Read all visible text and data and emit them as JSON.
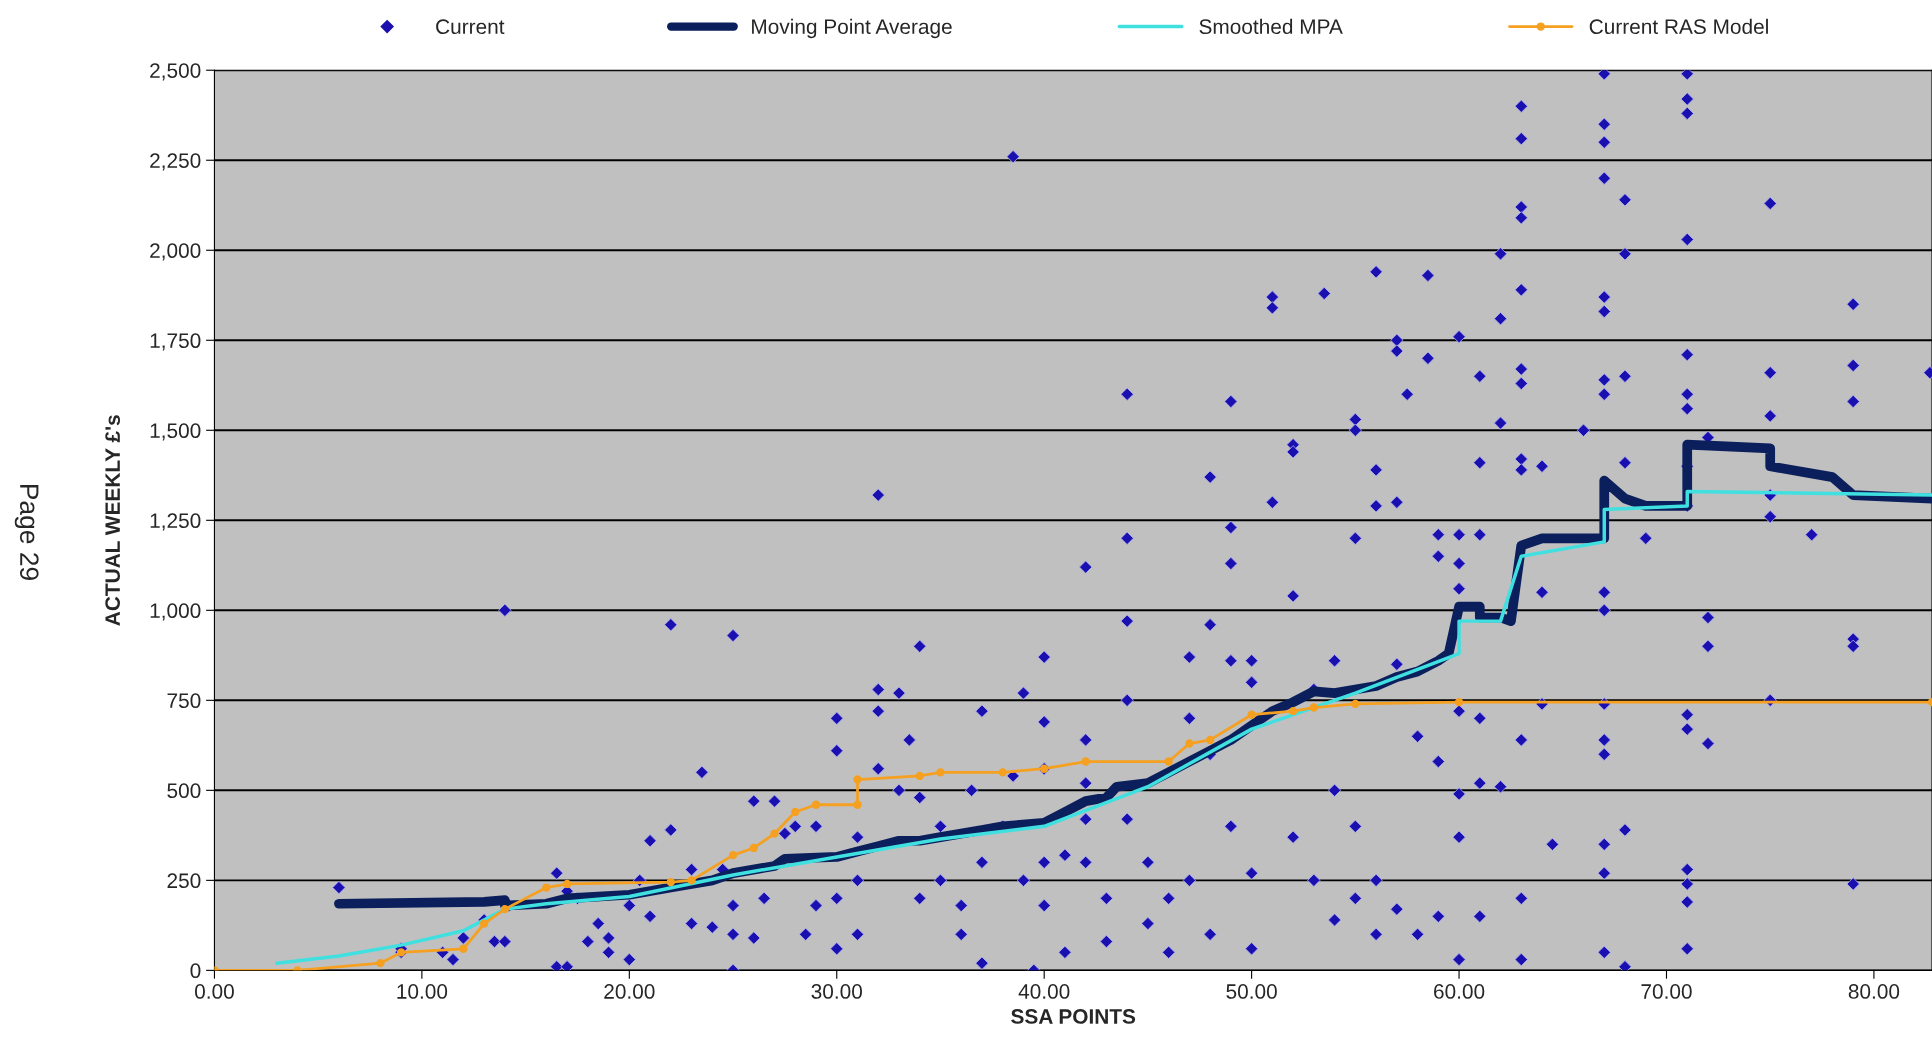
{
  "chart_data": {
    "type": "scatter",
    "xlabel": "SSA POINTS",
    "ylabel": "ACTUAL WEEKLY £'s",
    "annotations": [
      "Page 29"
    ],
    "xlim": [
      0,
      82.8
    ],
    "ylim": [
      0,
      2500
    ],
    "xticks": [
      {
        "value": 0,
        "label": "0.00"
      },
      {
        "value": 10,
        "label": "10.00"
      },
      {
        "value": 20,
        "label": "20.00"
      },
      {
        "value": 30,
        "label": "30.00"
      },
      {
        "value": 40,
        "label": "40.00"
      },
      {
        "value": 50,
        "label": "50.00"
      },
      {
        "value": 60,
        "label": "60.00"
      },
      {
        "value": 70,
        "label": "70.00"
      },
      {
        "value": 80,
        "label": "80.00"
      }
    ],
    "yticks": [
      0,
      250,
      500,
      750,
      {
        "value": 1000,
        "label": "1,000"
      },
      {
        "value": 1250,
        "label": "1,250"
      },
      {
        "value": 1500,
        "label": "1,500"
      },
      {
        "value": 1750,
        "label": "1,750"
      },
      {
        "value": 2000,
        "label": "2,000"
      },
      {
        "value": 2250,
        "label": "2,250"
      },
      {
        "value": 2500,
        "label": "2,500"
      }
    ],
    "grid": "y",
    "legend": "top",
    "series": [
      {
        "name": "Current",
        "marker": "diamond",
        "color": "#1a10b0",
        "x": [
          6,
          9,
          9,
          11,
          11.5,
          12,
          13,
          13.5,
          14,
          14,
          14.2,
          16.5,
          17,
          16.5,
          17,
          17.5,
          18,
          18.5,
          19,
          19,
          20,
          20,
          20.5,
          21,
          21,
          22,
          22,
          23,
          23,
          23.5,
          24,
          24.5,
          25,
          25,
          25,
          25,
          26,
          26,
          26.5,
          27,
          27.5,
          28,
          28.5,
          29,
          29,
          30,
          30,
          30,
          30,
          31,
          31,
          31,
          32,
          32,
          32,
          32,
          33,
          33,
          33.5,
          34,
          34,
          34,
          35,
          35,
          36,
          36,
          36.5,
          37,
          37,
          37,
          38,
          38.5,
          38.5,
          39,
          39,
          39.5,
          40,
          40,
          40,
          40,
          40,
          41,
          41,
          42,
          42,
          42,
          42,
          42,
          43,
          43,
          44,
          44,
          44,
          44,
          44,
          45,
          45,
          46,
          46,
          47,
          47,
          47,
          48,
          48,
          48,
          48,
          49,
          49,
          49,
          49,
          49,
          50,
          50,
          50,
          50,
          51,
          51,
          51,
          52,
          52,
          52,
          52,
          53,
          53,
          53.5,
          54,
          54,
          54,
          55,
          55,
          55,
          55,
          55,
          56,
          56,
          56,
          56,
          56,
          57,
          57,
          57,
          57,
          57,
          57.5,
          58,
          58,
          58.5,
          58.5,
          59,
          59,
          59,
          59,
          60,
          60,
          60,
          60,
          60,
          60,
          60,
          60,
          61,
          61,
          61,
          61,
          61,
          61,
          62,
          62,
          62,
          62,
          63,
          63,
          63,
          63,
          63,
          63,
          63,
          63,
          63,
          63,
          63,
          63,
          64,
          64,
          64,
          64.5,
          66,
          67,
          67,
          67,
          67,
          67,
          67,
          67,
          67,
          67,
          67,
          67,
          67,
          67,
          67,
          67,
          67,
          68,
          68,
          68,
          68,
          68,
          68,
          69,
          71,
          71,
          71,
          71,
          71,
          71,
          71,
          71,
          71,
          71,
          71,
          71,
          71,
          71,
          71,
          72,
          72,
          72,
          72,
          75,
          75,
          75,
          75,
          75,
          75,
          77,
          79,
          79,
          79,
          79,
          79,
          79,
          82.7
        ],
        "values": [
          230,
          50,
          60,
          50,
          30,
          90,
          140,
          80,
          80,
          1000,
          180,
          10,
          10,
          270,
          220,
          200,
          80,
          130,
          50,
          90,
          30,
          180,
          250,
          150,
          360,
          960,
          390,
          130,
          280,
          550,
          120,
          280,
          930,
          0,
          180,
          100,
          470,
          90,
          200,
          470,
          380,
          400,
          100,
          400,
          180,
          700,
          610,
          200,
          60,
          370,
          250,
          100,
          780,
          1320,
          720,
          560,
          770,
          500,
          640,
          900,
          480,
          200,
          400,
          250,
          100,
          180,
          500,
          720,
          20,
          300,
          400,
          2260,
          540,
          770,
          250,
          0,
          870,
          690,
          560,
          300,
          180,
          320,
          50,
          1120,
          640,
          520,
          420,
          300,
          200,
          80,
          1600,
          1200,
          970,
          750,
          420,
          300,
          130,
          200,
          50,
          870,
          700,
          250,
          1370,
          960,
          600,
          100,
          1580,
          1230,
          1130,
          860,
          400,
          860,
          800,
          270,
          60,
          1870,
          1840,
          1300,
          1460,
          1440,
          1040,
          370,
          780,
          250,
          1880,
          860,
          500,
          140,
          1530,
          1500,
          1200,
          400,
          200,
          1940,
          1390,
          1290,
          250,
          100,
          1750,
          1720,
          1300,
          850,
          170,
          1600,
          650,
          100,
          1930,
          1700,
          1210,
          1150,
          580,
          150,
          1760,
          1210,
          1130,
          1060,
          720,
          490,
          370,
          30,
          1650,
          1410,
          1210,
          700,
          520,
          150,
          1990,
          1810,
          1520,
          510,
          2400,
          2310,
          2120,
          2090,
          1890,
          1670,
          1630,
          1420,
          1390,
          640,
          200,
          30,
          1400,
          1050,
          740,
          350,
          1500,
          2490,
          2350,
          2300,
          2200,
          1870,
          1830,
          1640,
          1600,
          1050,
          1000,
          740,
          640,
          600,
          350,
          270,
          50,
          1650,
          1410,
          2140,
          1990,
          390,
          10,
          1200,
          2490,
          2420,
          2380,
          2030,
          1710,
          1600,
          1560,
          1400,
          1290,
          710,
          670,
          280,
          240,
          190,
          60,
          1480,
          980,
          900,
          630,
          2130,
          1660,
          1540,
          1320,
          1260,
          750,
          1210,
          1850,
          1680,
          1580,
          920,
          900,
          240,
          1660
        ]
      },
      {
        "name": "Moving Point Average",
        "type": "line",
        "marker": "none",
        "color": "#0a1f5c",
        "x": [
          6,
          13,
          14,
          14,
          16,
          17,
          20,
          22,
          24,
          25,
          27,
          27.5,
          30,
          31,
          32,
          33,
          34,
          35,
          37,
          38,
          40,
          41,
          42,
          43,
          43.5,
          45,
          46,
          47,
          48,
          49,
          50,
          51,
          52,
          53,
          54,
          55,
          56,
          57,
          58,
          59,
          59.5,
          60,
          61,
          61,
          62,
          62.5,
          63,
          64,
          65,
          67,
          67,
          68,
          69,
          71,
          71,
          75,
          75,
          78,
          79,
          82.8
        ],
        "values": [
          185,
          190,
          195,
          180,
          185,
          200,
          210,
          230,
          250,
          270,
          290,
          310,
          315,
          330,
          345,
          360,
          360,
          370,
          390,
          400,
          410,
          440,
          470,
          480,
          510,
          520,
          550,
          580,
          610,
          640,
          680,
          720,
          745,
          775,
          770,
          780,
          790,
          815,
          830,
          860,
          880,
          1010,
          1010,
          980,
          980,
          970,
          1180,
          1200,
          1200,
          1200,
          1360,
          1310,
          1290,
          1290,
          1460,
          1450,
          1400,
          1370,
          1320,
          1310
        ]
      },
      {
        "name": "Smoothed MPA",
        "type": "line",
        "marker": "none",
        "color": "#40e0e0",
        "x": [
          3,
          6,
          9,
          12,
          14,
          16,
          20,
          25,
          30,
          35,
          40,
          45,
          50,
          55,
          60,
          60,
          62,
          63,
          67,
          67,
          71,
          71,
          82.8
        ],
        "values": [
          20,
          40,
          70,
          110,
          170,
          185,
          205,
          265,
          315,
          365,
          400,
          510,
          670,
          770,
          880,
          970,
          970,
          1150,
          1190,
          1280,
          1290,
          1330,
          1320
        ]
      },
      {
        "name": "Current RAS Model",
        "type": "line",
        "marker": "circle",
        "color": "#f5a020",
        "x": [
          0,
          4,
          8,
          9,
          12,
          13,
          14,
          16,
          17,
          22,
          23,
          25,
          26,
          27,
          28,
          29,
          31,
          31,
          34,
          35,
          38,
          40,
          42,
          46,
          47,
          48,
          50,
          52,
          53,
          55,
          60,
          82.8
        ],
        "values": [
          0,
          0,
          20,
          50,
          60,
          130,
          170,
          230,
          240,
          245,
          250,
          320,
          340,
          380,
          440,
          460,
          460,
          530,
          540,
          550,
          550,
          560,
          580,
          580,
          630,
          640,
          710,
          720,
          730,
          740,
          745,
          745
        ]
      }
    ]
  }
}
